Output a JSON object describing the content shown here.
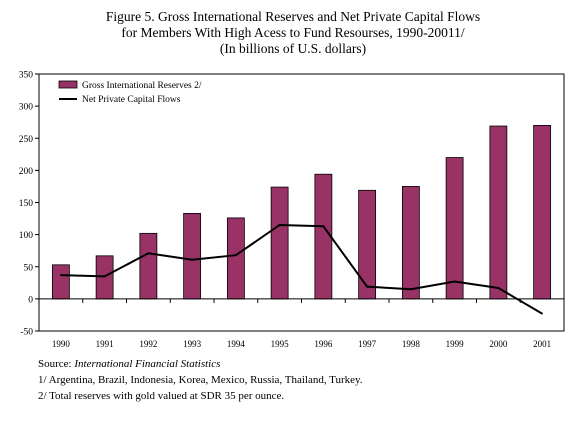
{
  "title": {
    "line1": "Figure 5. Gross International Reserves and Net Private Capital Flows",
    "line2": "for Members With High Acess to Fund Resourses, 1990-20011/",
    "line3": "(In billions of U.S. dollars)"
  },
  "chart_data": {
    "type": "bar",
    "categories": [
      "1990",
      "1991",
      "1992",
      "1993",
      "1994",
      "1995",
      "1996",
      "1997",
      "1998",
      "1999",
      "2000",
      "2001"
    ],
    "series": [
      {
        "name": "Gross International Reserves 2/",
        "type": "bar",
        "color": "#993366",
        "values": [
          53,
          67,
          102,
          133,
          126,
          174,
          194,
          169,
          175,
          220,
          269,
          270
        ]
      },
      {
        "name": "Net Private Capital Flows",
        "type": "line",
        "color": "#000000",
        "values": [
          37,
          35,
          71,
          61,
          68,
          115,
          113,
          19,
          15,
          27,
          17,
          -23
        ]
      }
    ],
    "ylim": [
      -50,
      350
    ],
    "yticks": [
      -50,
      0,
      50,
      100,
      150,
      200,
      250,
      300,
      350
    ],
    "legend": "top-left",
    "grid": false
  },
  "notes": {
    "source_label": "Source: ",
    "source_name": "International Financial Statistics",
    "note1": "1/ Argentina, Brazil, Indonesia, Korea, Mexico, Russia, Thailand, Turkey.",
    "note2": "2/ Total reserves with gold valued at SDR 35 per ounce."
  }
}
